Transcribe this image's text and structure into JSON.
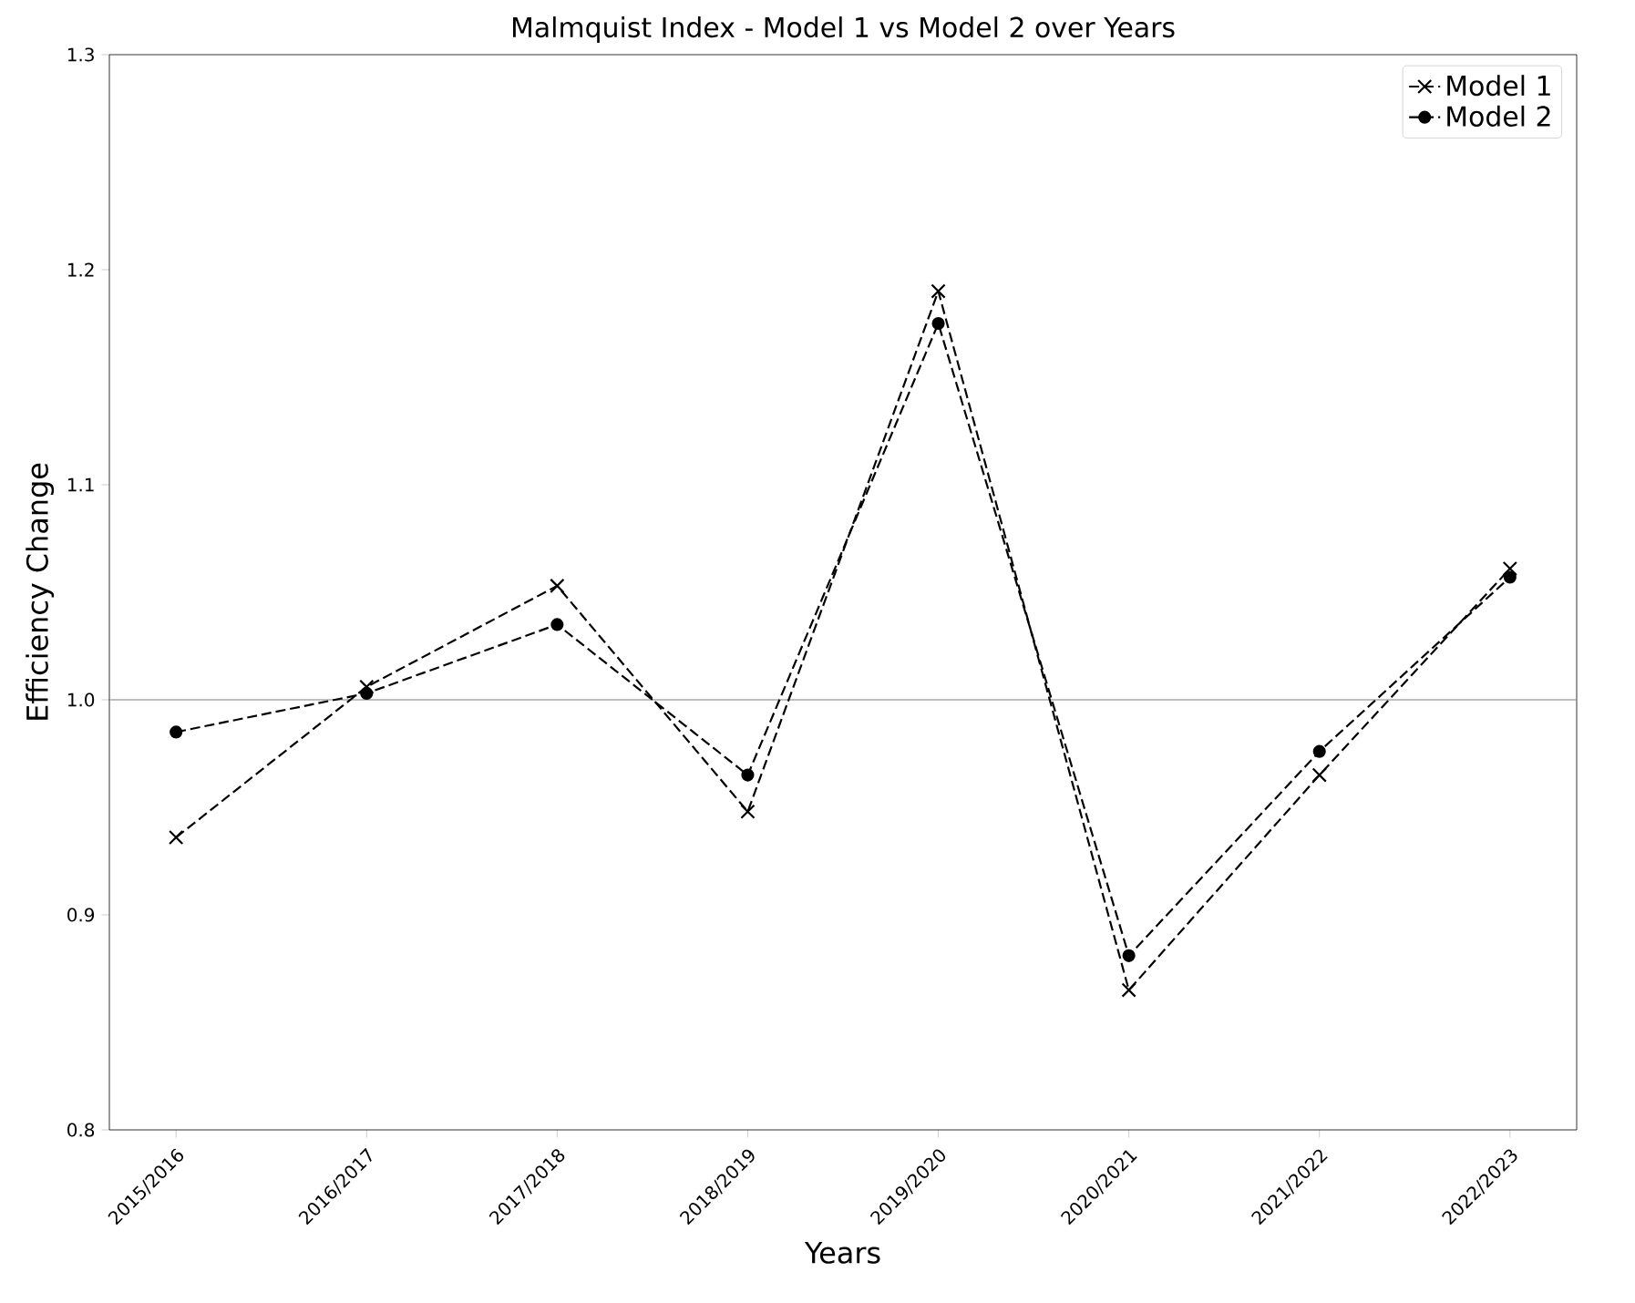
{
  "chart_data": {
    "type": "line",
    "title": "Malmquist Index - Model 1 vs Model 2 over Years",
    "xlabel": "Years",
    "ylabel": "Efficiency Change",
    "categories": [
      "2015/2016",
      "2016/2017",
      "2017/2018",
      "2018/2019",
      "2019/2020",
      "2020/2021",
      "2021/2022",
      "2022/2023"
    ],
    "series": [
      {
        "name": "Model 1",
        "color": "#000000",
        "marker": "cross",
        "values": [
          0.936,
          1.006,
          1.053,
          0.948,
          1.19,
          0.865,
          0.965,
          1.061
        ]
      },
      {
        "name": "Model 2",
        "color": "#000000",
        "marker": "circle",
        "values": [
          0.985,
          1.003,
          1.035,
          0.965,
          1.175,
          0.881,
          0.976,
          1.057
        ]
      }
    ],
    "line_style": "dashed",
    "ylim": [
      0.8,
      1.3
    ],
    "yticks": [
      {
        "value": 0.8,
        "label": "0.8"
      },
      {
        "value": 0.9,
        "label": "0.9"
      },
      {
        "value": 1.0,
        "label": "1.0"
      },
      {
        "value": 1.1,
        "label": "1.1"
      },
      {
        "value": 1.2,
        "label": "1.2"
      },
      {
        "value": 1.3,
        "label": "1.3"
      }
    ],
    "ref_lines": [
      {
        "axis": "y",
        "value": 1.0,
        "color": "#808080"
      }
    ],
    "legend": "top right",
    "grid": false
  }
}
